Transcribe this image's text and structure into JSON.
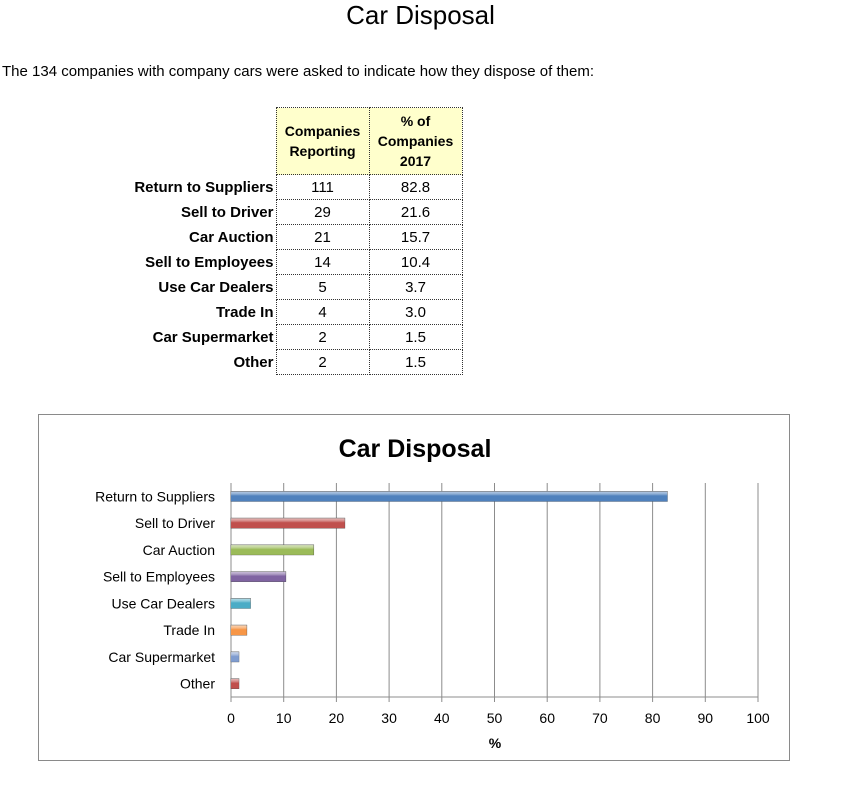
{
  "page": {
    "title": "Car Disposal",
    "intro": "The 134 companies with company cars were asked to indicate how they dispose of them:"
  },
  "table": {
    "headers": {
      "col1": [
        "Companies",
        "Reporting"
      ],
      "col2": [
        "% of",
        "Companies",
        "2017"
      ]
    },
    "rows": [
      {
        "label": "Return to Suppliers",
        "companies": "111",
        "percent": "82.8"
      },
      {
        "label": "Sell to Driver",
        "companies": "29",
        "percent": "21.6"
      },
      {
        "label": "Car Auction",
        "companies": "21",
        "percent": "15.7"
      },
      {
        "label": "Sell to Employees",
        "companies": "14",
        "percent": "10.4"
      },
      {
        "label": "Use Car Dealers",
        "companies": "5",
        "percent": "3.7"
      },
      {
        "label": "Trade In",
        "companies": "4",
        "percent": "3.0"
      },
      {
        "label": "Car Supermarket",
        "companies": "2",
        "percent": "1.5"
      },
      {
        "label": "Other",
        "companies": "2",
        "percent": "1.5"
      }
    ]
  },
  "chart_data": {
    "type": "bar",
    "orientation": "horizontal",
    "title": "Car Disposal",
    "xlabel": "%",
    "ylabel": "",
    "categories": [
      "Return to Suppliers",
      "Sell to Driver",
      "Car Auction",
      "Sell to Employees",
      "Use Car Dealers",
      "Trade In",
      "Car Supermarket",
      "Other"
    ],
    "values": [
      82.8,
      21.6,
      15.7,
      10.4,
      3.7,
      3.0,
      1.5,
      1.5
    ],
    "colors": [
      "#4f81bd",
      "#c0504d",
      "#9bbb59",
      "#8064a2",
      "#4bacc6",
      "#f79646",
      "#7f9ccf",
      "#c0504d"
    ],
    "xlim": [
      0,
      100
    ],
    "xticks": [
      0,
      10,
      20,
      30,
      40,
      50,
      60,
      70,
      80,
      90,
      100
    ],
    "grid": true,
    "legend": "none"
  }
}
